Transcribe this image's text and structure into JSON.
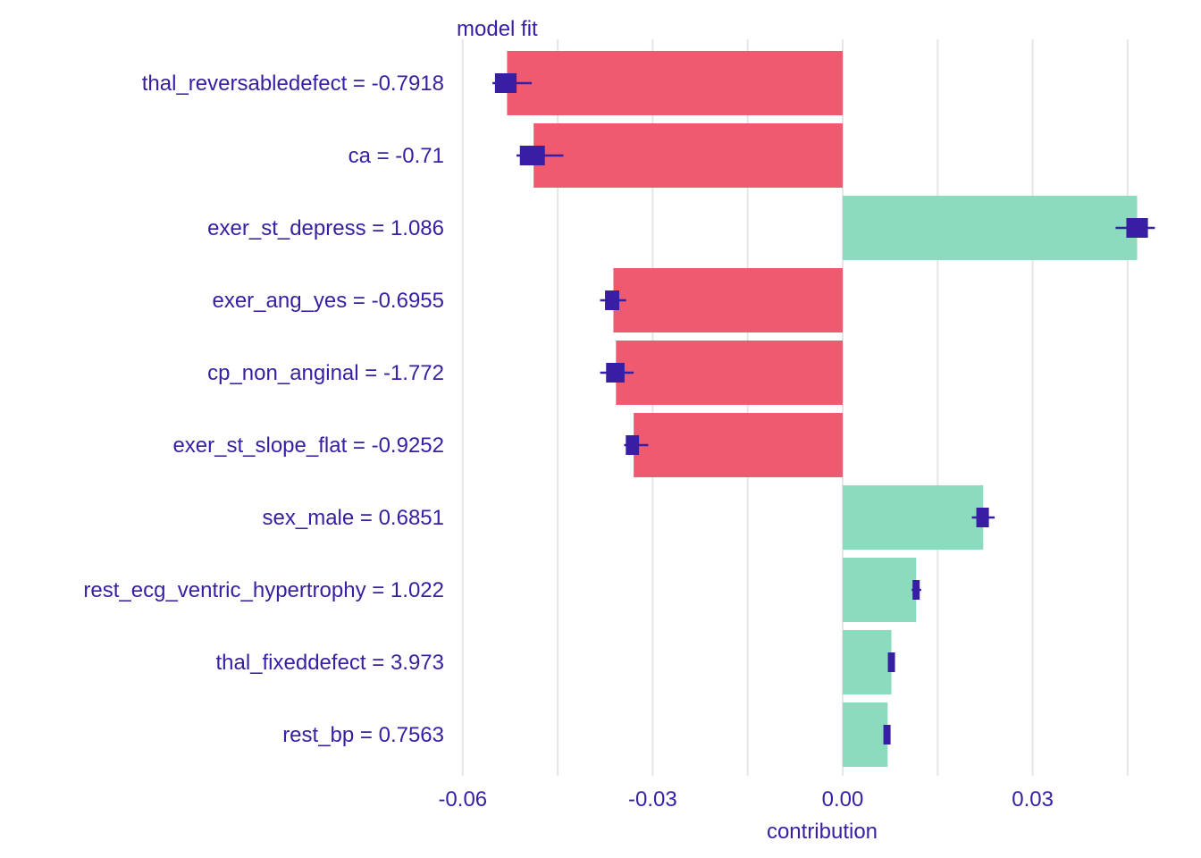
{
  "chart_data": {
    "type": "bar",
    "title": "model  fit",
    "xlabel": "contribution",
    "ylabel": "",
    "xlim": [
      -0.06,
      0.05
    ],
    "x_ticks": [
      -0.06,
      -0.03,
      0.0,
      0.03
    ],
    "x_tick_labels": [
      "-0.06",
      "-0.03",
      "0.00",
      "0.03"
    ],
    "grid": true,
    "orientation": "horizontal",
    "colors": {
      "negative": "#f05a71",
      "positive": "#8bdcbe",
      "marker": "#371ea3",
      "text": "#371ea3",
      "grid": "#e6e6e6"
    },
    "categories": [
      "thal_reversabledefect = -0.7918",
      "ca = -0.71",
      "exer_st_depress = 1.086",
      "exer_ang_yes = -0.6955",
      "cp_non_anginal = -1.772",
      "exer_st_slope_flat = -0.9252",
      "sex_male = 0.6851",
      "rest_ecg_ventric_hypertrophy = 1.022",
      "thal_fixeddefect = 3.973",
      "rest_bp = 0.7563"
    ],
    "values": [
      -0.053,
      -0.0488,
      0.0465,
      -0.0362,
      -0.0358,
      -0.033,
      0.0222,
      0.0116,
      0.0077,
      0.0071
    ],
    "markers": [
      {
        "center": -0.0532,
        "low": -0.0553,
        "high": -0.0491
      },
      {
        "center": -0.049,
        "low": -0.0515,
        "high": -0.0441
      },
      {
        "center": 0.0465,
        "low": 0.0431,
        "high": 0.0493
      },
      {
        "center": -0.0364,
        "low": -0.0383,
        "high": -0.0342
      },
      {
        "center": -0.0359,
        "low": -0.0383,
        "high": -0.033
      },
      {
        "center": -0.0332,
        "low": -0.0345,
        "high": -0.0307
      },
      {
        "center": 0.0221,
        "low": 0.0204,
        "high": 0.024
      },
      {
        "center": 0.0116,
        "low": 0.0109,
        "high": 0.0124
      },
      {
        "center": 0.0077,
        "low": 0.0073,
        "high": 0.0081
      },
      {
        "center": 0.007,
        "low": 0.0066,
        "high": 0.0075
      }
    ]
  }
}
